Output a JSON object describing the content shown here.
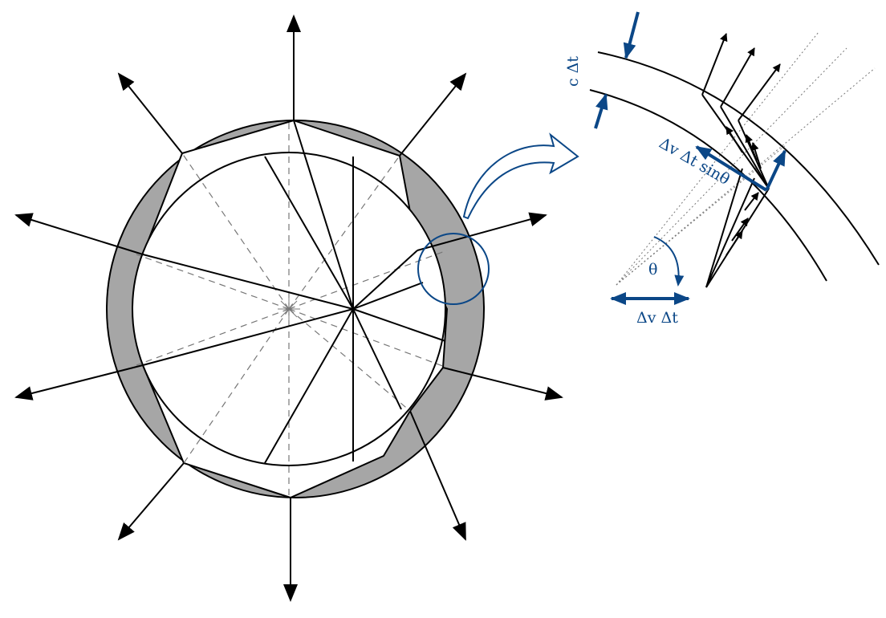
{
  "labels": {
    "c_dt": "c Δt",
    "dv_dt_sin": "Δv Δt sinθ",
    "theta": "θ",
    "dv_dt": "Δv Δt"
  },
  "colors": {
    "accent": "#0b4787",
    "ink": "#000000",
    "shell": "#a6a6a6",
    "dashed": "#777777"
  },
  "icons": {
    "zoom_marker": "circle-magnifier",
    "zoom_arrow": "curved-arrow"
  }
}
